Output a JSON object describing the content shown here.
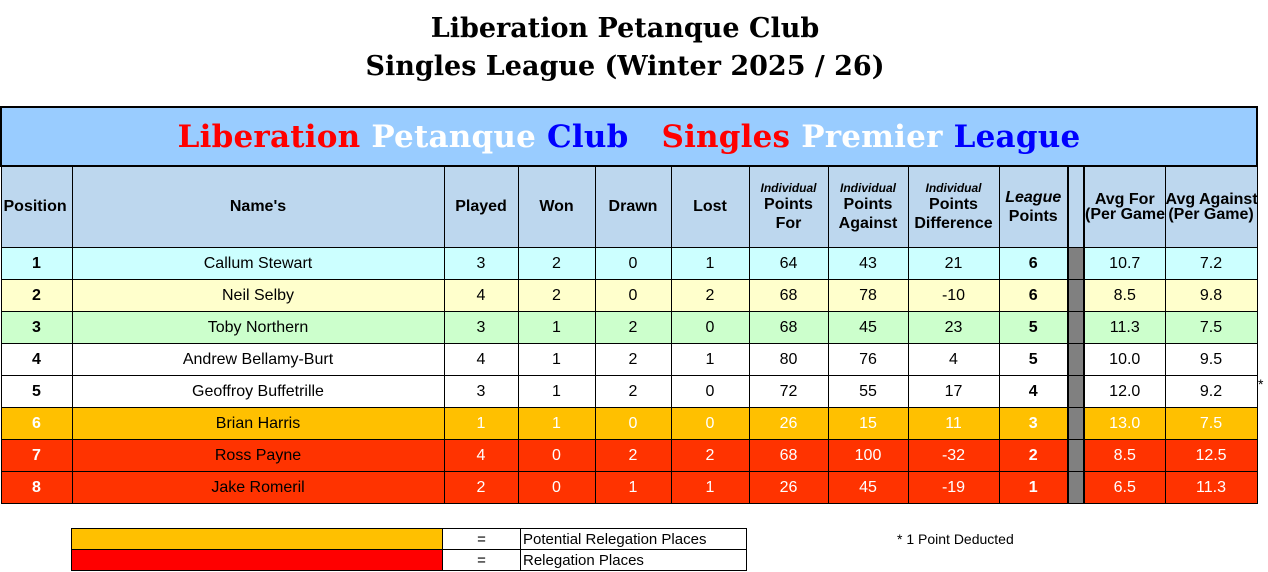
{
  "title_line1": "Liberation Petanque Club",
  "title_line2": "Singles League (Winter 2025 / 26)",
  "banner": {
    "word1": "Liberation",
    "word2": "Petanque",
    "word3": "Club",
    "word4": "Singles",
    "word5": "Premier",
    "word6": "League",
    "colors": {
      "red": "#ff0000",
      "white": "#ffffff",
      "blue": "#0000ff"
    }
  },
  "headers": {
    "position": "Position",
    "name": "Name's",
    "played": "Played",
    "won": "Won",
    "drawn": "Drawn",
    "lost": "Lost",
    "ind_for_a": "Individual",
    "ind_for_b": "Points",
    "ind_for_c": "For",
    "ind_against_a": "Individual",
    "ind_against_b": "Points",
    "ind_against_c": "Against",
    "ind_diff_a": "Individual",
    "ind_diff_b": "Points",
    "ind_diff_c": "Difference",
    "league_a": "League",
    "league_b": "Points",
    "avg_for_a": "Avg For",
    "avg_for_b": "(Per Game)",
    "avg_against_a": "Avg Against",
    "avg_against_b": "(Per Game)"
  },
  "rows": [
    {
      "pos": "1",
      "name": "Callum Stewart",
      "played": "3",
      "won": "2",
      "drawn": "0",
      "lost": "1",
      "pf": "64",
      "pa": "43",
      "pd": "21",
      "lp": "6",
      "avg_for": "10.7",
      "avg_against": "7.2"
    },
    {
      "pos": "2",
      "name": "Neil Selby",
      "played": "4",
      "won": "2",
      "drawn": "0",
      "lost": "2",
      "pf": "68",
      "pa": "78",
      "pd": "-10",
      "lp": "6",
      "avg_for": "8.5",
      "avg_against": "9.8"
    },
    {
      "pos": "3",
      "name": "Toby Northern",
      "played": "3",
      "won": "1",
      "drawn": "2",
      "lost": "0",
      "pf": "68",
      "pa": "45",
      "pd": "23",
      "lp": "5",
      "avg_for": "11.3",
      "avg_against": "7.5"
    },
    {
      "pos": "4",
      "name": "Andrew Bellamy-Burt",
      "played": "4",
      "won": "1",
      "drawn": "2",
      "lost": "1",
      "pf": "80",
      "pa": "76",
      "pd": "4",
      "lp": "5",
      "avg_for": "10.0",
      "avg_against": "9.5"
    },
    {
      "pos": "5",
      "name": "Geoffroy Buffetrille",
      "played": "3",
      "won": "1",
      "drawn": "2",
      "lost": "0",
      "pf": "72",
      "pa": "55",
      "pd": "17",
      "lp": "4",
      "avg_for": "12.0",
      "avg_against": "9.2"
    },
    {
      "pos": "6",
      "name": "Brian Harris",
      "played": "1",
      "won": "1",
      "drawn": "0",
      "lost": "0",
      "pf": "26",
      "pa": "15",
      "pd": "11",
      "lp": "3",
      "avg_for": "13.0",
      "avg_against": "7.5"
    },
    {
      "pos": "7",
      "name": "Ross Payne",
      "played": "4",
      "won": "0",
      "drawn": "2",
      "lost": "2",
      "pf": "68",
      "pa": "100",
      "pd": "-32",
      "lp": "2",
      "avg_for": "8.5",
      "avg_against": "12.5"
    },
    {
      "pos": "8",
      "name": "Jake Romeril",
      "played": "2",
      "won": "0",
      "drawn": "1",
      "lost": "1",
      "pf": "26",
      "pa": "45",
      "pd": "-19",
      "lp": "1",
      "avg_for": "6.5",
      "avg_against": "11.3"
    }
  ],
  "deduction_marker": "*",
  "key": {
    "eq": "=",
    "potential": "Potential Relegation Places",
    "relegation": "Relegation Places",
    "potential_color": "#ffc000",
    "relegation_color": "#ff0000"
  },
  "footnote": "* 1 Point Deducted"
}
